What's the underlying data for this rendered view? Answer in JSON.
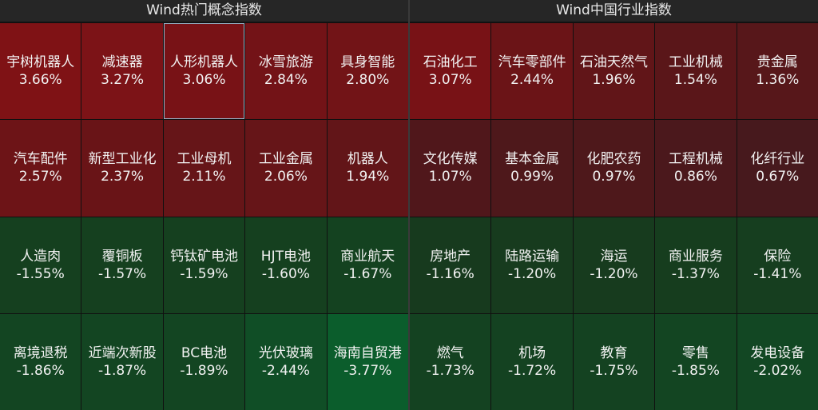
{
  "panels": [
    {
      "title": "Wind热门概念指数",
      "tiles": [
        {
          "name": "宇树机器人",
          "pct": "3.66%",
          "color": "#7f1215"
        },
        {
          "name": "减速器",
          "pct": "3.27%",
          "color": "#7c1317"
        },
        {
          "name": "人形机器人",
          "pct": "3.06%",
          "color": "#781216",
          "selected": true
        },
        {
          "name": "冰雪旅游",
          "pct": "2.84%",
          "color": "#731317"
        },
        {
          "name": "具身智能",
          "pct": "2.80%",
          "color": "#721417"
        },
        {
          "name": "汽车配件",
          "pct": "2.57%",
          "color": "#6d1417"
        },
        {
          "name": "新型工业化",
          "pct": "2.37%",
          "color": "#691417"
        },
        {
          "name": "工业母机",
          "pct": "2.11%",
          "color": "#661518"
        },
        {
          "name": "工业金属",
          "pct": "2.06%",
          "color": "#661518"
        },
        {
          "name": "机器人",
          "pct": "1.94%",
          "color": "#621518"
        },
        {
          "name": "人造肉",
          "pct": "-1.55%",
          "color": "#15401f"
        },
        {
          "name": "覆铜板",
          "pct": "-1.57%",
          "color": "#15401f"
        },
        {
          "name": "钙钛矿电池",
          "pct": "-1.59%",
          "color": "#15401f"
        },
        {
          "name": "HJT电池",
          "pct": "-1.60%",
          "color": "#15401f"
        },
        {
          "name": "商业航天",
          "pct": "-1.67%",
          "color": "#144220"
        },
        {
          "name": "离境退税",
          "pct": "-1.86%",
          "color": "#134522"
        },
        {
          "name": "近端次新股",
          "pct": "-1.87%",
          "color": "#134522"
        },
        {
          "name": "BC电池",
          "pct": "-1.89%",
          "color": "#134522"
        },
        {
          "name": "光伏玻璃",
          "pct": "-2.44%",
          "color": "#104e26"
        },
        {
          "name": "海南自贸港",
          "pct": "-3.77%",
          "color": "#0b5d2c"
        }
      ]
    },
    {
      "title": "Wind中国行业指数",
      "tiles": [
        {
          "name": "石油化工",
          "pct": "3.07%",
          "color": "#781216"
        },
        {
          "name": "汽车零部件",
          "pct": "2.44%",
          "color": "#6b1417"
        },
        {
          "name": "石油天然气",
          "pct": "1.96%",
          "color": "#611518"
        },
        {
          "name": "工业机械",
          "pct": "1.54%",
          "color": "#5a1619"
        },
        {
          "name": "贵金属",
          "pct": "1.36%",
          "color": "#57171a"
        },
        {
          "name": "文化传媒",
          "pct": "1.07%",
          "color": "#50171b"
        },
        {
          "name": "基本金属",
          "pct": "0.99%",
          "color": "#4e181b"
        },
        {
          "name": "化肥农药",
          "pct": "0.97%",
          "color": "#4e181b"
        },
        {
          "name": "工程机械",
          "pct": "0.86%",
          "color": "#4b181c"
        },
        {
          "name": "化纤行业",
          "pct": "0.67%",
          "color": "#47191d"
        },
        {
          "name": "房地产",
          "pct": "-1.16%",
          "color": "#173a1e"
        },
        {
          "name": "陆路运输",
          "pct": "-1.20%",
          "color": "#173b1e"
        },
        {
          "name": "海运",
          "pct": "-1.20%",
          "color": "#173b1e"
        },
        {
          "name": "商业服务",
          "pct": "-1.37%",
          "color": "#163d1e"
        },
        {
          "name": "保险",
          "pct": "-1.41%",
          "color": "#163e1f"
        },
        {
          "name": "燃气",
          "pct": "-1.73%",
          "color": "#144221"
        },
        {
          "name": "机场",
          "pct": "-1.72%",
          "color": "#144221"
        },
        {
          "name": "教育",
          "pct": "-1.75%",
          "color": "#144221"
        },
        {
          "name": "零售",
          "pct": "-1.85%",
          "color": "#134522"
        },
        {
          "name": "发电设备",
          "pct": "-2.02%",
          "color": "#124723"
        }
      ]
    }
  ]
}
